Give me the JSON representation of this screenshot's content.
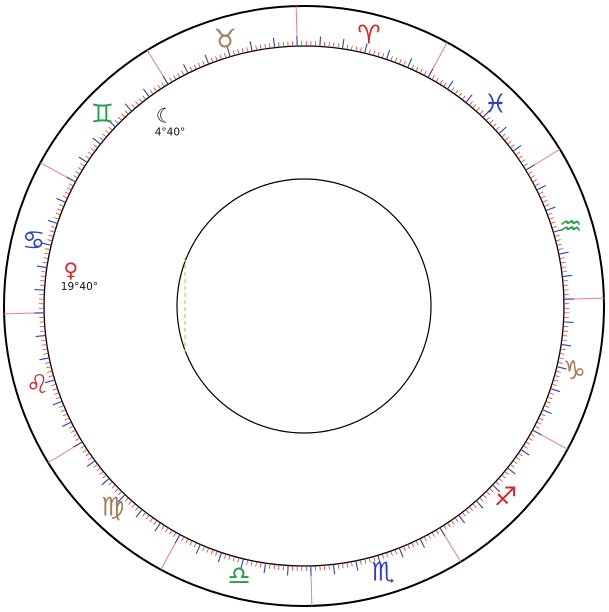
{
  "chart": {
    "sign_colors": {
      "fire": "#e0202a",
      "earth": "#a87a55",
      "air": "#22a04a",
      "water": "#2a40c8"
    },
    "ring_color": "#000000",
    "tick_minor_color": "#e0202a",
    "tick_major_color": "#2a40c8",
    "divider_color": "#f08080",
    "marker_color": "#f0a030",
    "signs": [
      {
        "name": "aries",
        "glyph": "♈",
        "element": "fire",
        "icon": "aries-icon"
      },
      {
        "name": "pisces",
        "glyph": "♓",
        "element": "water",
        "icon": "pisces-icon"
      },
      {
        "name": "aquarius",
        "glyph": "♒",
        "element": "air",
        "icon": "aquarius-icon"
      },
      {
        "name": "capricorn",
        "glyph": "♑",
        "element": "earth",
        "icon": "capricorn-icon"
      },
      {
        "name": "sagittarius",
        "glyph": "♐",
        "element": "fire",
        "icon": "sagittarius-icon"
      },
      {
        "name": "scorpio",
        "glyph": "♏",
        "element": "water",
        "icon": "scorpio-icon"
      },
      {
        "name": "libra",
        "glyph": "♎",
        "element": "air",
        "icon": "libra-icon"
      },
      {
        "name": "virgo",
        "glyph": "♍",
        "element": "earth",
        "icon": "virgo-icon"
      },
      {
        "name": "leo",
        "glyph": "♌",
        "element": "fire",
        "icon": "leo-icon"
      },
      {
        "name": "cancer",
        "glyph": "♋",
        "element": "water",
        "icon": "cancer-icon"
      },
      {
        "name": "gemini",
        "glyph": "♊",
        "element": "air",
        "icon": "gemini-icon"
      },
      {
        "name": "taurus",
        "glyph": "♉",
        "element": "earth",
        "icon": "taurus-icon"
      }
    ],
    "planets": [
      {
        "name": "moon",
        "glyph": "☾",
        "label": "4°40°",
        "color": "#111111",
        "icon": "moon-icon",
        "sign": "gemini",
        "degree": 4.667
      },
      {
        "name": "venus",
        "glyph": "♀",
        "label": "19°40°",
        "color": "#e0202a",
        "icon": "venus-icon",
        "sign": "cancer",
        "degree": 19.667
      }
    ]
  }
}
